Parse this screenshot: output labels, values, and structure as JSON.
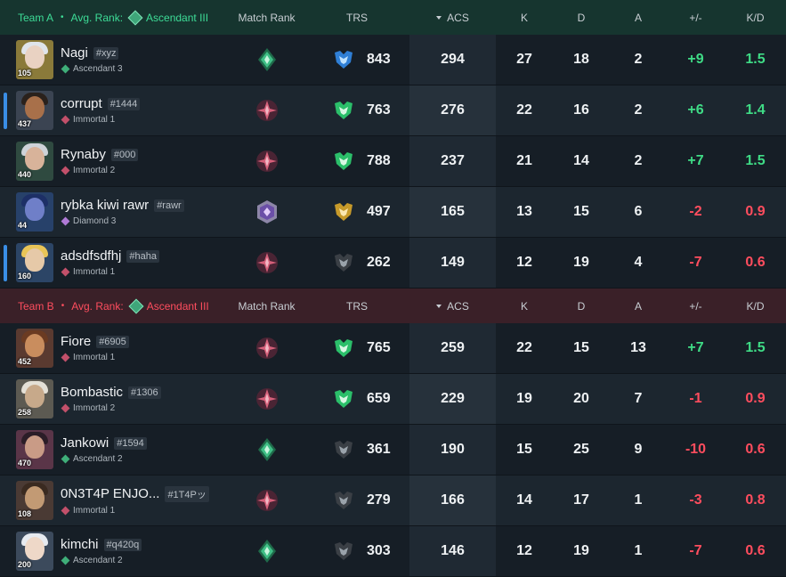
{
  "columns": {
    "match_rank": "Match Rank",
    "trs": "TRS",
    "acs": "ACS",
    "k": "K",
    "d": "D",
    "a": "A",
    "pm": "+/-",
    "kd": "K/D"
  },
  "team_a": {
    "name": "Team A",
    "avg_rank_label": "Avg. Rank:",
    "avg_rank": "Ascendant III",
    "players": [
      {
        "name": "Nagi",
        "tag": "#xyz",
        "rank": "Ascendant 3",
        "level": "105",
        "trs": "843",
        "acs": "294",
        "k": "27",
        "d": "18",
        "a": "2",
        "pm": "+9",
        "kd": "1.5"
      },
      {
        "name": "corrupt",
        "tag": "#1444",
        "rank": "Immortal 1",
        "level": "437",
        "trs": "763",
        "acs": "276",
        "k": "22",
        "d": "16",
        "a": "2",
        "pm": "+6",
        "kd": "1.4"
      },
      {
        "name": "Rynaby",
        "tag": "#000",
        "rank": "Immortal 2",
        "level": "440",
        "trs": "788",
        "acs": "237",
        "k": "21",
        "d": "14",
        "a": "2",
        "pm": "+7",
        "kd": "1.5"
      },
      {
        "name": "rybka kiwi rawr",
        "tag": "#rawr",
        "rank": "Diamond 3",
        "level": "44",
        "trs": "497",
        "acs": "165",
        "k": "13",
        "d": "15",
        "a": "6",
        "pm": "-2",
        "kd": "0.9"
      },
      {
        "name": "adsdfsdfhj",
        "tag": "#haha",
        "rank": "Immortal 1",
        "level": "160",
        "trs": "262",
        "acs": "149",
        "k": "12",
        "d": "19",
        "a": "4",
        "pm": "-7",
        "kd": "0.6"
      }
    ]
  },
  "team_b": {
    "name": "Team B",
    "avg_rank_label": "Avg. Rank:",
    "avg_rank": "Ascendant III",
    "players": [
      {
        "name": "Fiore",
        "tag": "#6905",
        "rank": "Immortal 1",
        "level": "452",
        "trs": "765",
        "acs": "259",
        "k": "22",
        "d": "15",
        "a": "13",
        "pm": "+7",
        "kd": "1.5"
      },
      {
        "name": "Bombastic",
        "tag": "#1306",
        "rank": "Immortal 2",
        "level": "258",
        "trs": "659",
        "acs": "229",
        "k": "19",
        "d": "20",
        "a": "7",
        "pm": "-1",
        "kd": "0.9"
      },
      {
        "name": "Jankowi",
        "tag": "#1594",
        "rank": "Ascendant 2",
        "level": "470",
        "trs": "361",
        "acs": "190",
        "k": "15",
        "d": "25",
        "a": "9",
        "pm": "-10",
        "kd": "0.6"
      },
      {
        "name": "0N3T4P ENJO...",
        "tag": "#1T4Pッ",
        "rank": "Immortal 1",
        "level": "108",
        "trs": "279",
        "acs": "166",
        "k": "14",
        "d": "17",
        "a": "1",
        "pm": "-3",
        "kd": "0.8"
      },
      {
        "name": "kimchi",
        "tag": "#q420q",
        "rank": "Ascendant 2",
        "level": "200",
        "trs": "303",
        "acs": "146",
        "k": "12",
        "d": "19",
        "a": "1",
        "pm": "-7",
        "kd": "0.6"
      }
    ]
  },
  "colors": {
    "team_a_accent": "#3ddc97",
    "team_b_accent": "#ff4d5e",
    "positive": "#3fdc86",
    "negative": "#ff4d5e",
    "selection": "#3a8ee6"
  }
}
